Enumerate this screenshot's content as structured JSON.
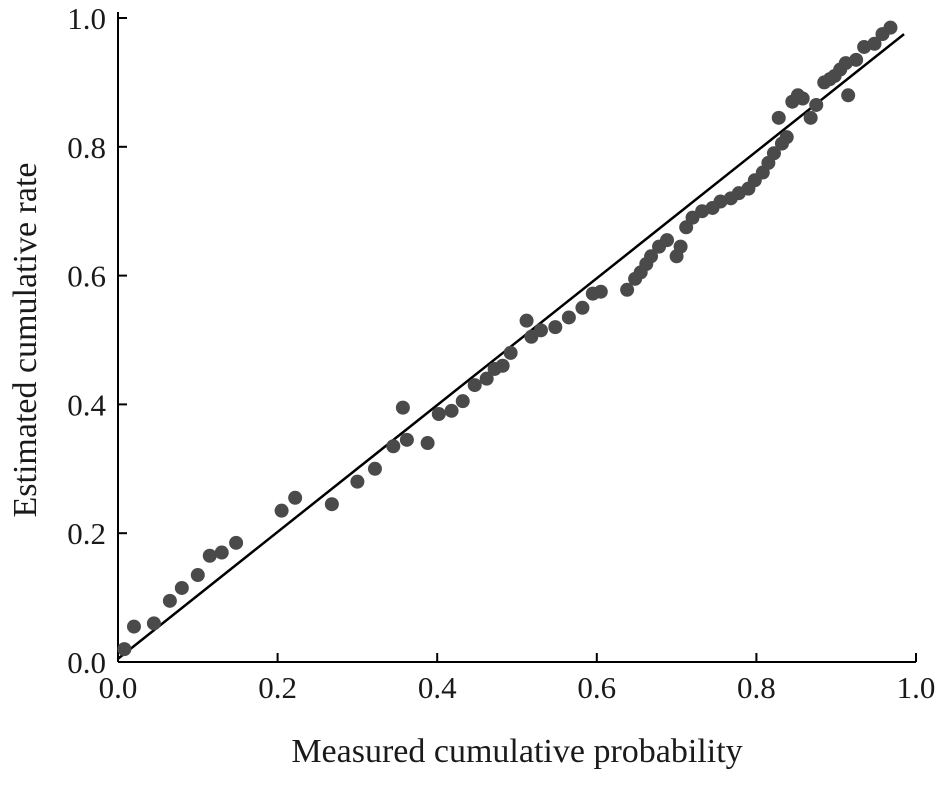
{
  "chart_data": {
    "type": "scatter",
    "title": "",
    "xlabel": "Measured cumulative probability",
    "ylabel": "Estimated cumulative rate",
    "xlim": [
      0.0,
      1.0
    ],
    "ylim": [
      0.0,
      1.0
    ],
    "xticks": [
      0.0,
      0.2,
      0.4,
      0.6,
      0.8,
      1.0
    ],
    "yticks": [
      0.0,
      0.2,
      0.4,
      0.6,
      0.8,
      1.0
    ],
    "grid": false,
    "legend": "none",
    "point_color": "#4a4a4a",
    "line_color": "#000000",
    "point_radius": 7,
    "reference_line": {
      "x1": 0.0,
      "y1": 0.005,
      "x2": 0.985,
      "y2": 0.975
    },
    "points": [
      [
        0.008,
        0.02
      ],
      [
        0.02,
        0.055
      ],
      [
        0.045,
        0.06
      ],
      [
        0.065,
        0.095
      ],
      [
        0.08,
        0.115
      ],
      [
        0.1,
        0.135
      ],
      [
        0.115,
        0.165
      ],
      [
        0.13,
        0.17
      ],
      [
        0.148,
        0.185
      ],
      [
        0.205,
        0.235
      ],
      [
        0.222,
        0.255
      ],
      [
        0.268,
        0.245
      ],
      [
        0.3,
        0.28
      ],
      [
        0.322,
        0.3
      ],
      [
        0.345,
        0.335
      ],
      [
        0.357,
        0.395
      ],
      [
        0.362,
        0.345
      ],
      [
        0.388,
        0.34
      ],
      [
        0.402,
        0.385
      ],
      [
        0.418,
        0.39
      ],
      [
        0.432,
        0.405
      ],
      [
        0.447,
        0.43
      ],
      [
        0.462,
        0.44
      ],
      [
        0.472,
        0.455
      ],
      [
        0.482,
        0.46
      ],
      [
        0.492,
        0.48
      ],
      [
        0.512,
        0.53
      ],
      [
        0.518,
        0.505
      ],
      [
        0.53,
        0.515
      ],
      [
        0.548,
        0.52
      ],
      [
        0.565,
        0.535
      ],
      [
        0.582,
        0.55
      ],
      [
        0.595,
        0.572
      ],
      [
        0.605,
        0.575
      ],
      [
        0.638,
        0.578
      ],
      [
        0.648,
        0.595
      ],
      [
        0.655,
        0.605
      ],
      [
        0.662,
        0.618
      ],
      [
        0.668,
        0.63
      ],
      [
        0.678,
        0.645
      ],
      [
        0.688,
        0.655
      ],
      [
        0.7,
        0.63
      ],
      [
        0.705,
        0.645
      ],
      [
        0.712,
        0.675
      ],
      [
        0.72,
        0.69
      ],
      [
        0.732,
        0.7
      ],
      [
        0.745,
        0.705
      ],
      [
        0.755,
        0.715
      ],
      [
        0.768,
        0.72
      ],
      [
        0.778,
        0.728
      ],
      [
        0.79,
        0.735
      ],
      [
        0.798,
        0.748
      ],
      [
        0.808,
        0.76
      ],
      [
        0.815,
        0.775
      ],
      [
        0.822,
        0.79
      ],
      [
        0.828,
        0.845
      ],
      [
        0.832,
        0.805
      ],
      [
        0.838,
        0.815
      ],
      [
        0.845,
        0.87
      ],
      [
        0.852,
        0.88
      ],
      [
        0.858,
        0.875
      ],
      [
        0.868,
        0.845
      ],
      [
        0.875,
        0.865
      ],
      [
        0.885,
        0.9
      ],
      [
        0.892,
        0.905
      ],
      [
        0.898,
        0.91
      ],
      [
        0.905,
        0.92
      ],
      [
        0.912,
        0.93
      ],
      [
        0.915,
        0.88
      ],
      [
        0.925,
        0.935
      ],
      [
        0.935,
        0.955
      ],
      [
        0.948,
        0.96
      ],
      [
        0.958,
        0.975
      ],
      [
        0.968,
        0.985
      ]
    ]
  }
}
